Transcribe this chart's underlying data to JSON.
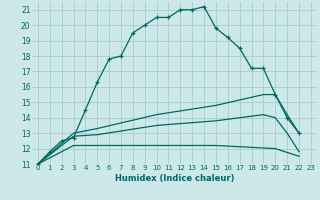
{
  "xlabel": "Humidex (Indice chaleur)",
  "ylabel": "",
  "bg_color": "#cce8e8",
  "grid_color": "#aacccc",
  "line_color": "#006666",
  "xlim": [
    -0.5,
    23.5
  ],
  "ylim": [
    11,
    21.5
  ],
  "yticks": [
    11,
    12,
    13,
    14,
    15,
    16,
    17,
    18,
    19,
    20,
    21
  ],
  "xticks": [
    0,
    1,
    2,
    3,
    4,
    5,
    6,
    7,
    8,
    9,
    10,
    11,
    12,
    13,
    14,
    15,
    16,
    17,
    18,
    19,
    20,
    21,
    22,
    23
  ],
  "series": [
    {
      "x": [
        0,
        1,
        2,
        3,
        4,
        5,
        6,
        7,
        8,
        9,
        10,
        11,
        12,
        13,
        14,
        15,
        16,
        17,
        18,
        19,
        20,
        21,
        22
      ],
      "y": [
        11,
        11.8,
        12.5,
        12.7,
        14.5,
        16.3,
        17.8,
        18.0,
        19.5,
        20.0,
        20.5,
        20.5,
        21.0,
        21.0,
        21.2,
        19.8,
        19.2,
        18.5,
        17.2,
        17.2,
        15.5,
        14.0,
        13.0
      ],
      "marker": true
    },
    {
      "x": [
        0,
        3,
        5,
        10,
        15,
        19,
        20,
        21,
        22
      ],
      "y": [
        11,
        13.0,
        13.3,
        14.2,
        14.8,
        15.5,
        15.5,
        14.2,
        13.0
      ],
      "marker": false
    },
    {
      "x": [
        0,
        3,
        5,
        10,
        15,
        19,
        20,
        21,
        22
      ],
      "y": [
        11,
        12.8,
        12.9,
        13.5,
        13.8,
        14.2,
        14.0,
        13.0,
        11.8
      ],
      "marker": false
    },
    {
      "x": [
        0,
        3,
        10,
        15,
        20,
        22
      ],
      "y": [
        11,
        12.2,
        12.2,
        12.2,
        12.0,
        11.5
      ],
      "marker": false
    }
  ]
}
